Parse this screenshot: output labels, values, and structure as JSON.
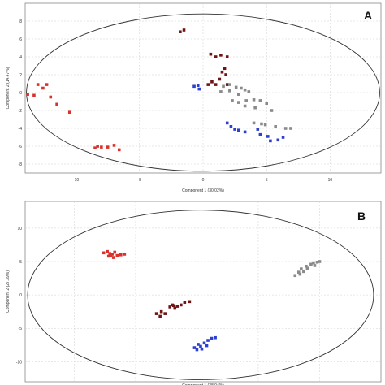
{
  "chart_data": [
    {
      "type": "scatter",
      "panel_label": "A",
      "xlabel": "Component 1 (30.02%)",
      "ylabel": "Component 2 (14.47%)",
      "xlim": [
        -14,
        14
      ],
      "ylim": [
        -9,
        10
      ],
      "xticks": [
        -10,
        -5,
        0,
        5,
        10
      ],
      "yticks": [
        8,
        6,
        4,
        2,
        0,
        -2,
        -4,
        -6,
        -8
      ],
      "grid": true,
      "confidence_ellipse": {
        "center": [
          0,
          0
        ],
        "semi_axes": [
          13.9,
          8.8
        ]
      },
      "series": [
        {
          "color": "#d9312b",
          "points": [
            [
              -13.8,
              -0.2
            ],
            [
              -13.3,
              -0.3
            ],
            [
              -13.0,
              0.9
            ],
            [
              -12.6,
              0.5
            ],
            [
              -12.3,
              0.9
            ],
            [
              -12.0,
              -0.5
            ],
            [
              -11.5,
              -1.3
            ],
            [
              -10.5,
              -2.2
            ],
            [
              -8.5,
              -6.2
            ],
            [
              -8.3,
              -6.0
            ],
            [
              -8.0,
              -6.1
            ],
            [
              -7.5,
              -6.1
            ],
            [
              -7.0,
              -5.9
            ],
            [
              -6.6,
              -6.4
            ]
          ]
        },
        {
          "color": "#6e1414",
          "points": [
            [
              -1.8,
              6.8
            ],
            [
              -1.5,
              7.0
            ],
            [
              0.6,
              4.3
            ],
            [
              1.0,
              4.0
            ],
            [
              1.4,
              4.2
            ],
            [
              1.9,
              4.0
            ],
            [
              1.7,
              2.7
            ],
            [
              1.5,
              2.3
            ],
            [
              1.8,
              2.0
            ],
            [
              1.3,
              1.5
            ],
            [
              0.7,
              1.2
            ],
            [
              0.4,
              0.9
            ],
            [
              1.0,
              0.9
            ],
            [
              1.9,
              0.9
            ]
          ]
        },
        {
          "color": "#8a8a8a",
          "points": [
            [
              1.6,
              0.7
            ],
            [
              2.1,
              0.9
            ],
            [
              2.6,
              0.6
            ],
            [
              3.0,
              0.5
            ],
            [
              3.3,
              0.3
            ],
            [
              1.4,
              0.1
            ],
            [
              2.1,
              0.2
            ],
            [
              2.8,
              -0.2
            ],
            [
              3.6,
              0.1
            ],
            [
              2.3,
              -0.9
            ],
            [
              2.8,
              -1.1
            ],
            [
              3.4,
              -0.9
            ],
            [
              4.0,
              -0.8
            ],
            [
              4.5,
              -0.9
            ],
            [
              3.3,
              -1.5
            ],
            [
              4.1,
              -1.7
            ],
            [
              5.0,
              -1.2
            ],
            [
              5.4,
              -2.0
            ],
            [
              4.0,
              -3.4
            ],
            [
              4.6,
              -3.5
            ],
            [
              4.9,
              -3.6
            ],
            [
              5.7,
              -3.8
            ],
            [
              6.5,
              -4.0
            ],
            [
              6.9,
              -4.0
            ]
          ]
        },
        {
          "color": "#2b3fd1",
          "points": [
            [
              -0.7,
              0.7
            ],
            [
              -0.4,
              0.8
            ],
            [
              -0.3,
              0.4
            ],
            [
              1.9,
              -3.4
            ],
            [
              2.2,
              -3.8
            ],
            [
              2.5,
              -4.1
            ],
            [
              2.8,
              -4.2
            ],
            [
              3.3,
              -4.4
            ],
            [
              4.3,
              -4.1
            ],
            [
              4.5,
              -4.7
            ],
            [
              5.1,
              -4.9
            ],
            [
              5.3,
              -5.4
            ],
            [
              5.9,
              -5.3
            ],
            [
              6.3,
              -5.0
            ]
          ]
        }
      ]
    },
    {
      "type": "scatter",
      "panel_label": "B",
      "xlabel": "Component 1 (38.04%)",
      "ylabel": "Component 2 (27.39%)",
      "xlim": [
        -14,
        15
      ],
      "ylim": [
        -13,
        14
      ],
      "xticks": [
        -10,
        -5,
        0,
        5,
        10
      ],
      "yticks": [
        10,
        5,
        0,
        -5,
        -10
      ],
      "grid": true,
      "confidence_ellipse": {
        "center": [
          0.3,
          0
        ],
        "semi_axes": [
          14.1,
          12.7
        ]
      },
      "series": [
        {
          "color": "#d9312b",
          "points": [
            [
              -7.6,
              6.3
            ],
            [
              -7.3,
              6.5
            ],
            [
              -7.1,
              6.2
            ],
            [
              -6.9,
              6.1
            ],
            [
              -6.7,
              6.4
            ],
            [
              -7.2,
              5.8
            ],
            [
              -6.8,
              5.6
            ],
            [
              -6.5,
              5.9
            ],
            [
              -6.2,
              6.0
            ],
            [
              -5.9,
              6.1
            ],
            [
              -7.0,
              5.9
            ]
          ]
        },
        {
          "color": "#6e1414",
          "points": [
            [
              -3.3,
              -2.8
            ],
            [
              -3.0,
              -3.2
            ],
            [
              -2.9,
              -2.5
            ],
            [
              -2.6,
              -2.8
            ],
            [
              -2.2,
              -1.8
            ],
            [
              -1.9,
              -1.6
            ],
            [
              -1.6,
              -1.7
            ],
            [
              -1.3,
              -1.5
            ],
            [
              -1.0,
              -1.1
            ],
            [
              -0.6,
              -1.0
            ],
            [
              -1.8,
              -2.0
            ],
            [
              -2.0,
              -1.5
            ]
          ]
        },
        {
          "color": "#2b3fd1",
          "points": [
            [
              -0.2,
              -7.9
            ],
            [
              0.1,
              -7.4
            ],
            [
              0.3,
              -7.7
            ],
            [
              0.6,
              -7.2
            ],
            [
              0.9,
              -6.8
            ],
            [
              1.2,
              -6.5
            ],
            [
              0.4,
              -8.1
            ],
            [
              0.0,
              -8.2
            ],
            [
              0.8,
              -7.6
            ],
            [
              1.5,
              -6.4
            ]
          ]
        },
        {
          "color": "#8a8a8a",
          "points": [
            [
              8.0,
              2.9
            ],
            [
              8.3,
              3.4
            ],
            [
              8.5,
              3.9
            ],
            [
              8.7,
              3.5
            ],
            [
              9.0,
              4.0
            ],
            [
              9.3,
              4.6
            ],
            [
              9.5,
              4.8
            ],
            [
              9.8,
              4.9
            ],
            [
              10.0,
              5.0
            ],
            [
              8.9,
              4.3
            ],
            [
              9.6,
              4.4
            ],
            [
              8.4,
              3.1
            ]
          ]
        }
      ]
    }
  ]
}
